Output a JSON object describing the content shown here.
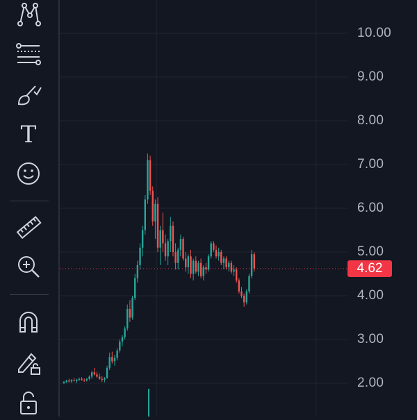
{
  "toolbar": {
    "tools": [
      {
        "icon": "trend-line-pattern-icon",
        "label": "Patterns"
      },
      {
        "icon": "fib-retracement-icon",
        "label": "Fib Retracement"
      },
      {
        "icon": "brush-icon",
        "label": "Brush"
      },
      {
        "icon": "text-tool-icon",
        "label": "Text"
      },
      {
        "icon": "emoji-icon",
        "label": "Icons"
      },
      {
        "icon": "ruler-icon",
        "label": "Measure"
      },
      {
        "icon": "zoom-in-icon",
        "label": "Zoom In"
      },
      {
        "icon": "magnet-icon",
        "label": "Magnet Mode"
      },
      {
        "icon": "lock-drawing-icon",
        "label": "Lock Drawings"
      },
      {
        "icon": "lock-icon",
        "label": "Lock All"
      }
    ],
    "text_tool_glyph": "T"
  },
  "colors": {
    "background": "#131722",
    "grid": "#1f2430",
    "up": "#26a69a",
    "down": "#ef5350",
    "last_price": "#f23645",
    "axis_text": "#b2b5be"
  },
  "price_axis": {
    "labels": [
      "10.00",
      "9.00",
      "8.00",
      "7.00",
      "6.00",
      "5.00",
      "4.00",
      "3.00",
      "2.00"
    ],
    "last_price": "4.62"
  },
  "chart_data": {
    "type": "candlestick",
    "title": "",
    "ylabel": "",
    "xlabel": "",
    "ylim": [
      1.2,
      10.6
    ],
    "grid": true,
    "last_price": 4.62,
    "candles": [
      [
        2.0,
        2.05,
        1.98,
        2.03
      ],
      [
        2.03,
        2.08,
        2.0,
        2.06
      ],
      [
        2.06,
        2.1,
        2.02,
        2.04
      ],
      [
        2.04,
        2.09,
        2.01,
        2.07
      ],
      [
        2.07,
        2.12,
        2.04,
        2.05
      ],
      [
        2.05,
        2.1,
        2.0,
        2.08
      ],
      [
        2.08,
        2.13,
        2.05,
        2.1
      ],
      [
        2.1,
        2.14,
        2.06,
        2.07
      ],
      [
        2.07,
        2.11,
        2.03,
        2.06
      ],
      [
        2.06,
        2.12,
        2.04,
        2.1
      ],
      [
        2.1,
        2.18,
        2.07,
        2.15
      ],
      [
        2.15,
        2.28,
        2.1,
        2.25
      ],
      [
        2.25,
        2.35,
        2.18,
        2.2
      ],
      [
        2.2,
        2.26,
        2.12,
        2.15
      ],
      [
        2.15,
        2.22,
        2.08,
        2.1
      ],
      [
        2.1,
        2.16,
        2.03,
        2.08
      ],
      [
        2.08,
        2.14,
        2.02,
        2.12
      ],
      [
        2.12,
        2.4,
        2.1,
        2.35
      ],
      [
        2.35,
        2.7,
        2.3,
        2.6
      ],
      [
        2.6,
        2.72,
        2.45,
        2.5
      ],
      [
        2.5,
        2.65,
        2.4,
        2.58
      ],
      [
        2.58,
        2.8,
        2.52,
        2.75
      ],
      [
        2.75,
        3.0,
        2.7,
        2.95
      ],
      [
        2.95,
        3.1,
        2.85,
        3.05
      ],
      [
        3.05,
        3.3,
        3.0,
        3.25
      ],
      [
        3.25,
        3.8,
        3.2,
        3.7
      ],
      [
        3.7,
        3.9,
        3.4,
        3.5
      ],
      [
        3.5,
        4.0,
        3.45,
        3.95
      ],
      [
        3.95,
        4.5,
        3.9,
        4.4
      ],
      [
        4.4,
        4.8,
        4.3,
        4.7
      ],
      [
        4.7,
        5.2,
        4.6,
        5.1
      ],
      [
        5.1,
        5.6,
        4.9,
        5.5
      ],
      [
        5.5,
        6.3,
        5.4,
        6.2
      ],
      [
        6.2,
        7.25,
        6.1,
        7.1
      ],
      [
        7.1,
        7.2,
        6.3,
        6.4
      ],
      [
        6.4,
        6.5,
        5.6,
        5.7
      ],
      [
        5.7,
        6.2,
        5.3,
        6.1
      ],
      [
        6.1,
        6.25,
        5.0,
        5.1
      ],
      [
        5.1,
        5.6,
        4.7,
        5.5
      ],
      [
        5.5,
        5.9,
        5.0,
        5.2
      ],
      [
        5.2,
        5.4,
        4.8,
        4.9
      ],
      [
        4.9,
        5.3,
        4.7,
        5.25
      ],
      [
        5.25,
        5.8,
        5.0,
        5.6
      ],
      [
        5.6,
        5.7,
        4.9,
        5.0
      ],
      [
        5.0,
        5.2,
        4.6,
        4.75
      ],
      [
        4.75,
        5.1,
        4.6,
        5.05
      ],
      [
        5.05,
        5.4,
        4.9,
        5.3
      ],
      [
        5.3,
        5.35,
        4.8,
        4.85
      ],
      [
        4.85,
        5.0,
        4.55,
        4.65
      ],
      [
        4.65,
        4.95,
        4.5,
        4.9
      ],
      [
        4.9,
        5.05,
        4.4,
        4.5
      ],
      [
        4.5,
        4.85,
        4.35,
        4.8
      ],
      [
        4.8,
        4.9,
        4.5,
        4.55
      ],
      [
        4.55,
        4.8,
        4.45,
        4.75
      ],
      [
        4.75,
        4.85,
        4.4,
        4.45
      ],
      [
        4.45,
        4.7,
        4.35,
        4.65
      ],
      [
        4.65,
        4.75,
        4.5,
        4.6
      ],
      [
        4.6,
        4.95,
        4.55,
        4.9
      ],
      [
        4.9,
        5.25,
        4.85,
        5.2
      ],
      [
        5.2,
        5.25,
        5.0,
        5.05
      ],
      [
        5.05,
        5.15,
        4.85,
        4.9
      ],
      [
        4.9,
        5.1,
        4.8,
        5.0
      ],
      [
        5.0,
        5.05,
        4.7,
        4.75
      ],
      [
        4.75,
        4.9,
        4.6,
        4.85
      ],
      [
        4.85,
        4.9,
        4.6,
        4.65
      ],
      [
        4.65,
        4.8,
        4.55,
        4.75
      ],
      [
        4.75,
        4.8,
        4.5,
        4.55
      ],
      [
        4.55,
        4.7,
        4.45,
        4.6
      ],
      [
        4.6,
        4.65,
        4.3,
        4.35
      ],
      [
        4.35,
        4.4,
        4.05,
        4.1
      ],
      [
        4.1,
        4.2,
        3.95,
        4.0
      ],
      [
        4.0,
        4.05,
        3.75,
        3.85
      ],
      [
        3.85,
        4.15,
        3.8,
        4.1
      ],
      [
        4.1,
        4.5,
        4.05,
        4.45
      ],
      [
        4.45,
        5.05,
        4.4,
        4.95
      ],
      [
        4.95,
        5.0,
        4.55,
        4.62
      ]
    ]
  }
}
